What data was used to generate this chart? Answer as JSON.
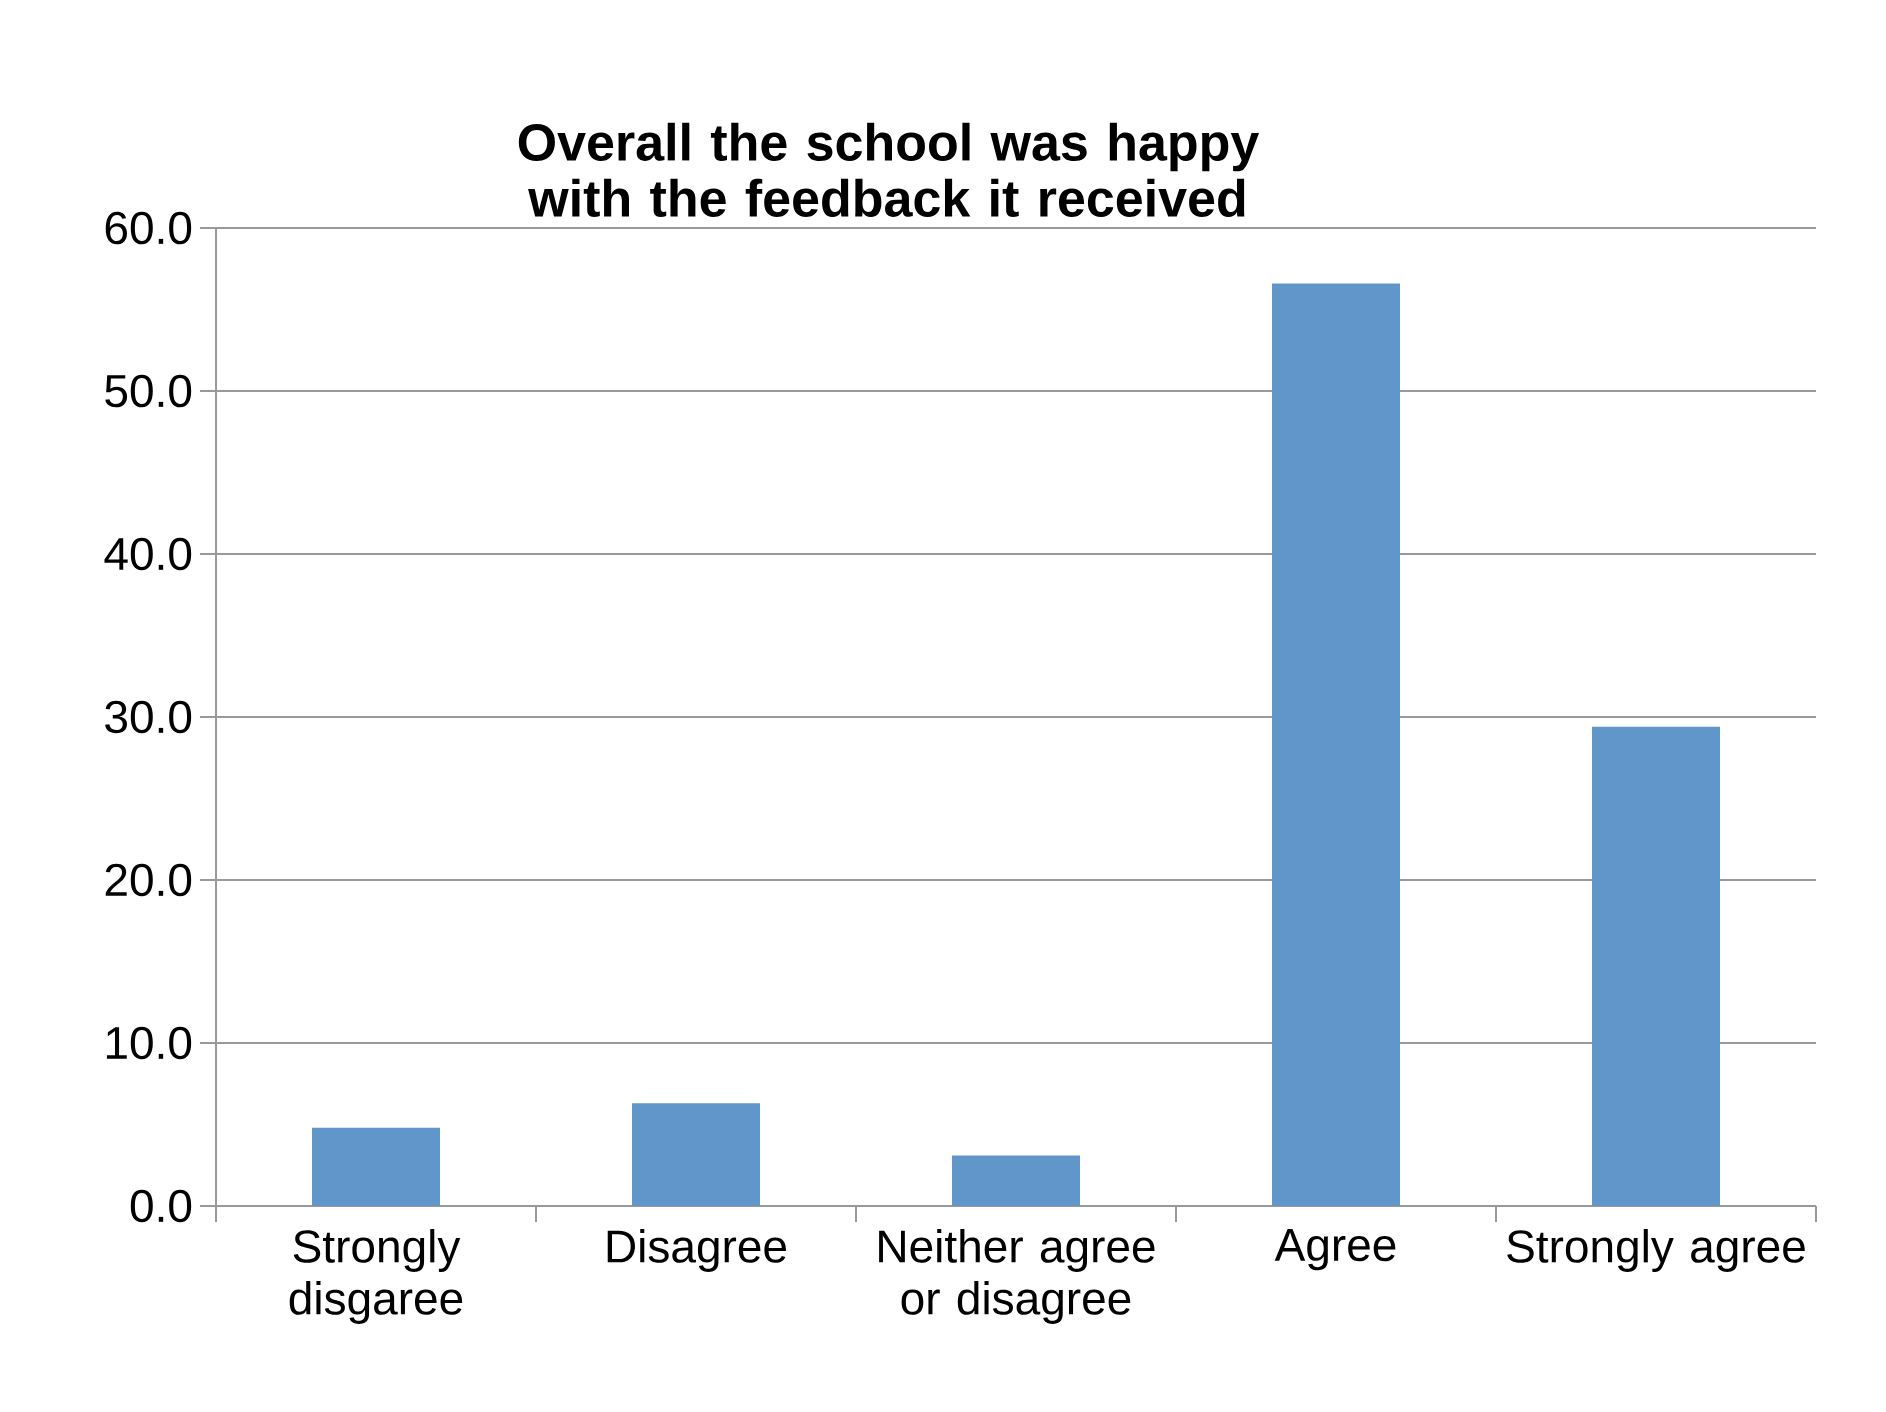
{
  "chart_data": {
    "type": "bar",
    "title": "Overall the school was happy with the feedback it received",
    "categories": [
      "Strongly disgaree",
      "Disagree",
      "Neither agree or disagree",
      "Agree",
      "Strongly agree"
    ],
    "values": [
      4.8,
      6.3,
      3.1,
      56.6,
      29.4
    ],
    "color": "#6096c9",
    "ylim": [
      0,
      60
    ],
    "yticks": [
      {
        "value": 0,
        "label": "0.0"
      },
      {
        "value": 10,
        "label": "10.0"
      },
      {
        "value": 20,
        "label": "20.0"
      },
      {
        "value": 30,
        "label": "30.0"
      },
      {
        "value": 40,
        "label": "40.0"
      },
      {
        "value": 50,
        "label": "50.0"
      },
      {
        "value": 60,
        "label": "60.0"
      }
    ],
    "grid": "y"
  }
}
